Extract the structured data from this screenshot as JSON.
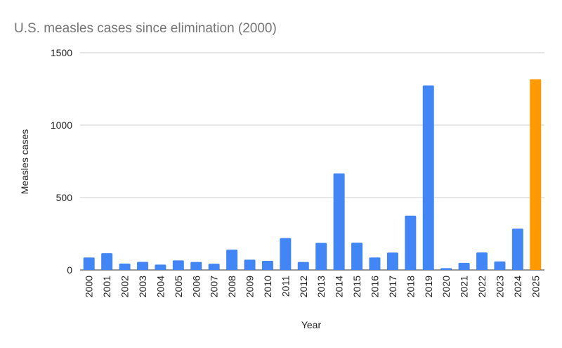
{
  "chart_data": {
    "type": "bar",
    "title": "U.S. measles cases since elimination (2000)",
    "xlabel": "Year",
    "ylabel": "Measles cases",
    "ylim": [
      0,
      1500
    ],
    "yticks": [
      0,
      500,
      1000,
      1500
    ],
    "grid": true,
    "categories": [
      "2000",
      "2001",
      "2002",
      "2003",
      "2004",
      "2005",
      "2006",
      "2007",
      "2008",
      "2009",
      "2010",
      "2011",
      "2012",
      "2013",
      "2014",
      "2015",
      "2016",
      "2017",
      "2018",
      "2019",
      "2020",
      "2021",
      "2022",
      "2023",
      "2024",
      "2025"
    ],
    "values": [
      86,
      116,
      44,
      56,
      37,
      66,
      55,
      43,
      140,
      71,
      63,
      220,
      55,
      187,
      667,
      188,
      86,
      120,
      375,
      1274,
      13,
      49,
      121,
      59,
      285,
      1317
    ],
    "colors": {
      "default": "#4285f4",
      "highlight": "#ff9900"
    },
    "highlight_category": "2025"
  }
}
